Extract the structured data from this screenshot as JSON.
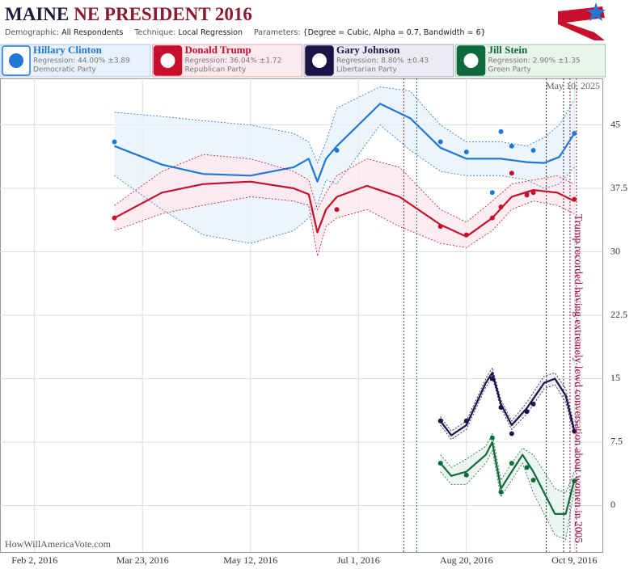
{
  "header": {
    "title_state": "MAINE",
    "title_rest": "NE PRESIDENT 2016",
    "parameters": [
      {
        "label": "Demographic:",
        "value": "All Respondents"
      },
      {
        "label": "Technique:",
        "value": "Local Regression"
      },
      {
        "label": "Parameters:",
        "value": "{Degree = Cubic, Alpha = 0.7, Bandwidth = 6}"
      }
    ]
  },
  "footer": {
    "date": "May 10, 2025",
    "site": "HowWillAmericaVote.com"
  },
  "chart_data": {
    "type": "line",
    "xlim": [
      "2016-01-17",
      "2016-10-22"
    ],
    "xticks": [
      {
        "value": "2016-02-02",
        "label": "Feb 2, 2016"
      },
      {
        "value": "2016-03-23",
        "label": "Mar 23, 2016"
      },
      {
        "value": "2016-05-12",
        "label": "May 12, 2016"
      },
      {
        "value": "2016-07-01",
        "label": "Jul 1, 2016"
      },
      {
        "value": "2016-08-20",
        "label": "Aug 20, 2016"
      },
      {
        "value": "2016-10-09",
        "label": "Oct 9, 2016"
      }
    ],
    "ylim": [
      -5.5,
      50.5
    ],
    "yaxis_side": "right",
    "yticks": [
      0,
      7.5,
      15,
      22.5,
      30,
      37.5,
      45
    ],
    "grid": true,
    "events": [
      {
        "x": "2016-07-22",
        "color": "#8b1a4a"
      },
      {
        "x": "2016-07-28",
        "color": "#1a7a8a"
      },
      {
        "x": "2016-09-26",
        "color": "#333333"
      },
      {
        "x": "2016-10-04",
        "color": "#333333"
      },
      {
        "x": "2016-10-07",
        "color": "#8b1a4a"
      },
      {
        "x": "2016-10-10",
        "color": "#8b1a4a"
      }
    ],
    "annotation": {
      "x": "2016-10-09",
      "text": "Trump recorded having extremely lewd conversation about women in 2005",
      "color": "#a0103a"
    },
    "series": [
      {
        "name": "Hillary Clinton",
        "regression": "Regression: 44.00% ±3.89",
        "party": "Democratic Party",
        "color": "#1f78d6",
        "band_color": "#e8f1fb",
        "points": {
          "x": [
            "2016-03-10",
            "2016-06-21",
            "2016-08-08",
            "2016-08-20",
            "2016-09-01",
            "2016-09-05",
            "2016-09-10",
            "2016-09-17",
            "2016-09-20",
            "2016-10-09"
          ],
          "values": [
            43,
            42,
            43,
            41.8,
            37,
            44.2,
            42.5,
            36.9,
            42,
            44
          ]
        },
        "fit": {
          "x": [
            "2016-03-10",
            "2016-04-01",
            "2016-04-20",
            "2016-05-12",
            "2016-06-01",
            "2016-06-08",
            "2016-06-12",
            "2016-06-16",
            "2016-06-21",
            "2016-07-11",
            "2016-07-25",
            "2016-08-08",
            "2016-08-20",
            "2016-09-05",
            "2016-09-17",
            "2016-09-25",
            "2016-10-02",
            "2016-10-09"
          ],
          "values": [
            42.5,
            40.3,
            39.2,
            39,
            40,
            41,
            38.3,
            41,
            42.5,
            47.5,
            45.8,
            42.3,
            41,
            41,
            40.6,
            40.5,
            41.2,
            44
          ],
          "upper": [
            46.5,
            46,
            45.5,
            45,
            44,
            43,
            40.5,
            43,
            47,
            49.5,
            49,
            45,
            43,
            43,
            42.5,
            43.5,
            45,
            48
          ],
          "lower": [
            39,
            35,
            32,
            31,
            32.5,
            34,
            35.5,
            38.5,
            38,
            45,
            42,
            39.5,
            39,
            39,
            38.5,
            37.5,
            38,
            40
          ]
        }
      },
      {
        "name": "Donald Trump",
        "regression": "Regression: 36.04% ±1.72",
        "party": "Republican Party",
        "color": "#c8102e",
        "band_color": "#fbe9ee",
        "points": {
          "x": [
            "2016-03-10",
            "2016-06-21",
            "2016-08-08",
            "2016-08-20",
            "2016-09-01",
            "2016-09-05",
            "2016-09-10",
            "2016-09-17",
            "2016-09-20",
            "2016-10-09"
          ],
          "values": [
            34,
            35,
            33,
            32,
            34,
            35.3,
            39.3,
            36.7,
            37,
            36.2
          ]
        },
        "fit": {
          "x": [
            "2016-03-10",
            "2016-04-01",
            "2016-04-20",
            "2016-05-12",
            "2016-06-01",
            "2016-06-08",
            "2016-06-12",
            "2016-06-16",
            "2016-06-21",
            "2016-07-05",
            "2016-07-20",
            "2016-08-08",
            "2016-08-20",
            "2016-09-01",
            "2016-09-10",
            "2016-09-20",
            "2016-10-01",
            "2016-10-09"
          ],
          "values": [
            34,
            37,
            38,
            38.3,
            37.5,
            36.8,
            32.3,
            35,
            36.5,
            37.8,
            36.5,
            33.2,
            31.8,
            34,
            36.5,
            37.3,
            37,
            36
          ],
          "upper": [
            35.5,
            39.5,
            41.5,
            41,
            39.5,
            38.5,
            35,
            37,
            39,
            41,
            40,
            35,
            33.5,
            36,
            38,
            38.5,
            39,
            38
          ],
          "lower": [
            32.5,
            34.5,
            35.5,
            36.5,
            36,
            35.5,
            29.5,
            33,
            34,
            35,
            33,
            31,
            30.5,
            32.5,
            35,
            36,
            35.5,
            34.5
          ]
        }
      },
      {
        "name": "Gary Johnson",
        "regression": "Regression: 8.80% ±0.43",
        "party": "Libertarian Party",
        "color": "#1b1448",
        "band_color": "#ecebf3",
        "points": {
          "x": [
            "2016-08-08",
            "2016-08-20",
            "2016-09-01",
            "2016-09-05",
            "2016-09-10",
            "2016-09-17",
            "2016-09-20",
            "2016-10-09"
          ],
          "values": [
            10,
            10,
            15,
            11.6,
            8.5,
            11.1,
            12,
            8.8
          ]
        },
        "fit": {
          "x": [
            "2016-08-08",
            "2016-08-13",
            "2016-08-20",
            "2016-08-29",
            "2016-09-01",
            "2016-09-05",
            "2016-09-10",
            "2016-09-17",
            "2016-09-25",
            "2016-09-30",
            "2016-10-05",
            "2016-10-09"
          ],
          "values": [
            10,
            8.3,
            9.5,
            14.5,
            15.7,
            12,
            9.5,
            11.5,
            14.5,
            15,
            13,
            8.8
          ],
          "upper": [
            10.5,
            8.8,
            10,
            15,
            16.3,
            12.5,
            10,
            12.2,
            15.3,
            15.7,
            13.8,
            9.3
          ],
          "lower": [
            9.5,
            7.8,
            9,
            14,
            15.1,
            11.5,
            9,
            10.8,
            13.8,
            14.3,
            12.2,
            8.3
          ]
        }
      },
      {
        "name": "Jill Stein",
        "regression": "Regression: 2.90% ±1.35",
        "party": "Green Party",
        "color": "#0f6b3c",
        "band_color": "#e8f3ec",
        "points": {
          "x": [
            "2016-08-08",
            "2016-08-20",
            "2016-09-01",
            "2016-09-05",
            "2016-09-10",
            "2016-09-17",
            "2016-09-20",
            "2016-10-09"
          ],
          "values": [
            5,
            3.6,
            8,
            1.6,
            5,
            4.5,
            3,
            2.9
          ]
        },
        "fit": {
          "x": [
            "2016-08-08",
            "2016-08-13",
            "2016-08-20",
            "2016-08-29",
            "2016-09-01",
            "2016-09-05",
            "2016-09-10",
            "2016-09-15",
            "2016-09-20",
            "2016-09-30",
            "2016-10-05",
            "2016-10-09"
          ],
          "values": [
            5,
            3.5,
            4,
            6,
            7.5,
            2,
            4,
            6,
            4,
            -1,
            -1,
            3
          ],
          "upper": [
            6,
            4.5,
            5.5,
            7,
            8.5,
            3,
            5,
            6.8,
            6,
            2,
            1.5,
            4
          ],
          "lower": [
            4,
            2.5,
            2.5,
            5,
            6.5,
            1,
            3,
            5,
            1.5,
            -3.5,
            -4,
            2
          ]
        }
      }
    ]
  }
}
